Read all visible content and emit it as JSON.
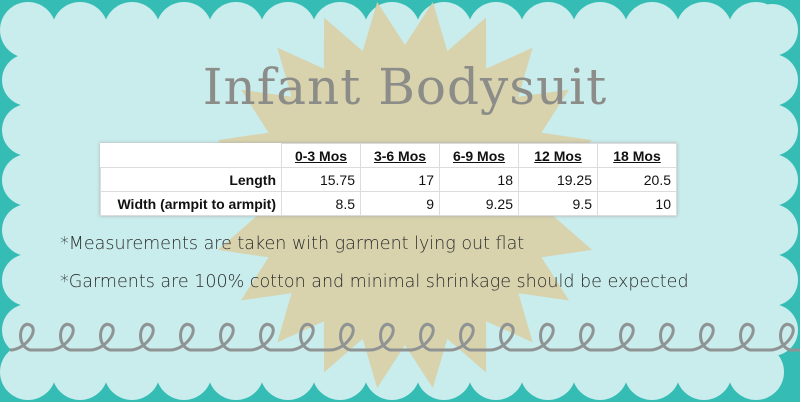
{
  "title": "Infant Bodysuit",
  "table": {
    "headers": [
      "",
      "0-3 Mos",
      "3-6 Mos",
      "6-9 Mos",
      "12 Mos",
      "18 Mos"
    ],
    "rows": [
      {
        "label": "Length",
        "values": [
          "15.75",
          "17",
          "18",
          "19.25",
          "20.5"
        ]
      },
      {
        "label": "Width (armpit to armpit)",
        "values": [
          "8.5",
          "9",
          "9.25",
          "9.5",
          "10"
        ]
      }
    ]
  },
  "notes": [
    "*Measurements are taken with garment lying out flat",
    "*Garments are 100% cotton and minimal shrinkage should be expected"
  ],
  "colors": {
    "border": "#35bdb5",
    "panel": "#c9ecec",
    "sunburst": "#d9cfa6",
    "loops": "#8f9394",
    "title": "#8c8c88"
  }
}
